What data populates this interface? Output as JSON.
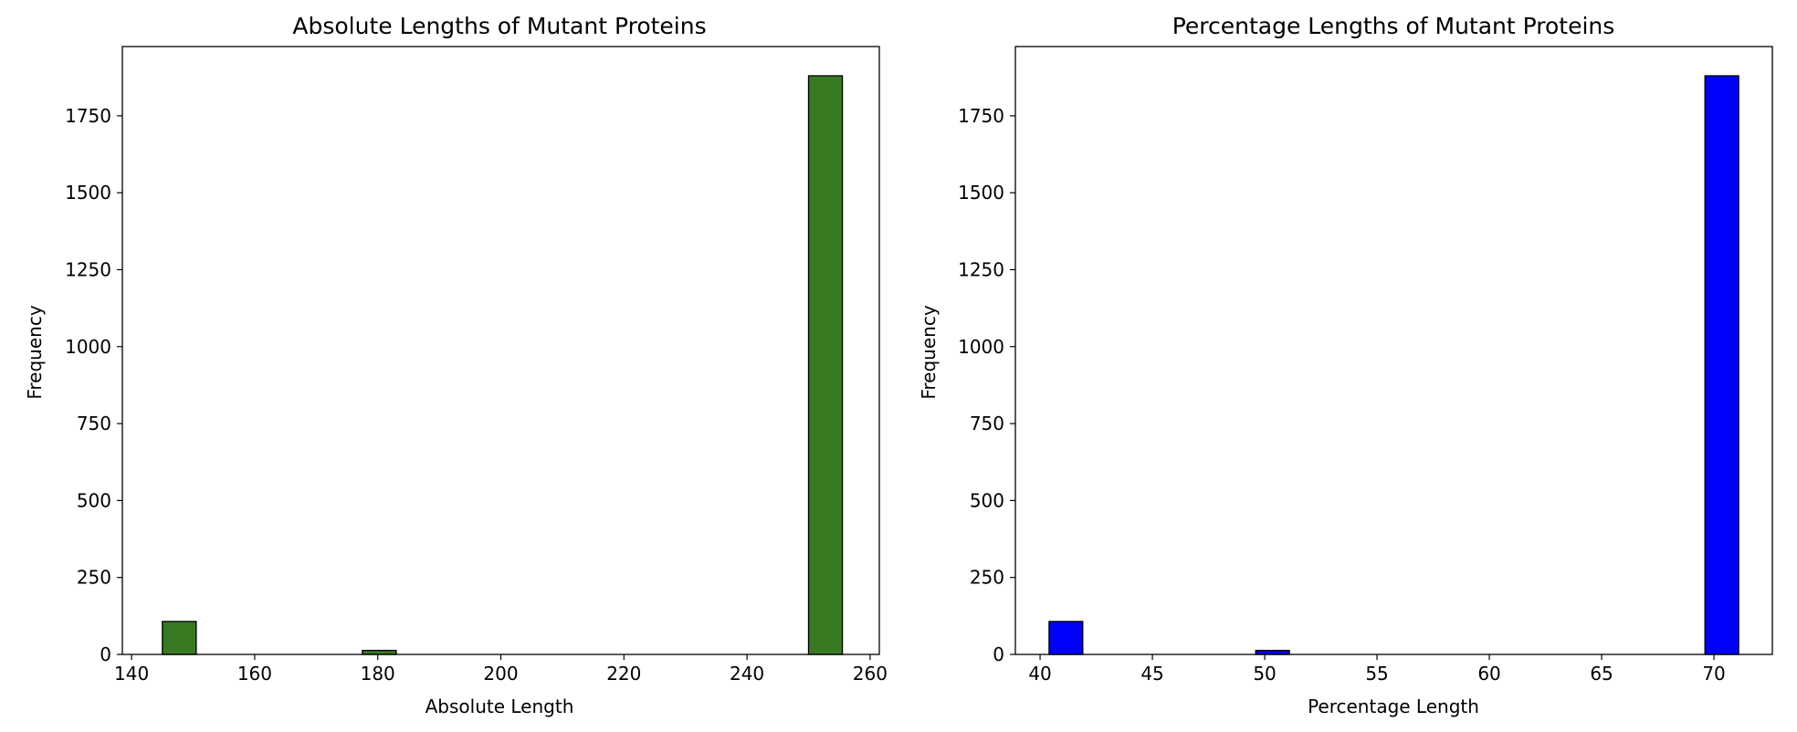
{
  "chart_data": [
    {
      "type": "bar",
      "title": "Absolute Lengths of Mutant Proteins",
      "xlabel": "Absolute Length",
      "ylabel": "Frequency",
      "xlim": [
        138.5,
        261.5
      ],
      "ylim": [
        0,
        1975
      ],
      "xticks": [
        140,
        160,
        180,
        200,
        220,
        240,
        260
      ],
      "yticks": [
        0,
        250,
        500,
        750,
        1000,
        1250,
        1500,
        1750
      ],
      "bar_color": "#387a22",
      "edge_color": "#000000",
      "bins": [
        {
          "x0": 145.0,
          "x1": 150.5,
          "count": 107
        },
        {
          "x0": 177.5,
          "x1": 183.0,
          "count": 13
        },
        {
          "x0": 250.0,
          "x1": 255.5,
          "count": 1880
        }
      ]
    },
    {
      "type": "bar",
      "title": "Percentage Lengths of Mutant Proteins",
      "xlabel": "Percentage Length",
      "ylabel": "Frequency",
      "xlim": [
        38.9,
        72.6
      ],
      "ylim": [
        0,
        1975
      ],
      "xticks": [
        40,
        45,
        50,
        55,
        60,
        65,
        70
      ],
      "yticks": [
        0,
        250,
        500,
        750,
        1000,
        1250,
        1500,
        1750
      ],
      "bar_color": "#0000ff",
      "edge_color": "#000000",
      "bins": [
        {
          "x0": 40.4,
          "x1": 41.9,
          "count": 107
        },
        {
          "x0": 49.6,
          "x1": 51.1,
          "count": 13
        },
        {
          "x0": 69.6,
          "x1": 71.1,
          "count": 1880
        }
      ]
    }
  ]
}
